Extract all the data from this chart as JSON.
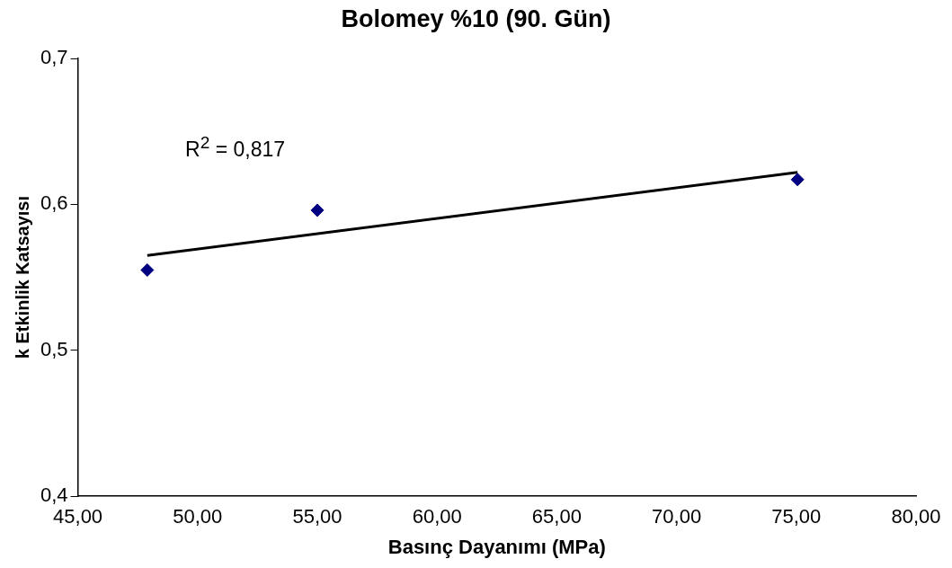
{
  "chart_data": {
    "type": "scatter",
    "title": "Bolomey %10 (90. Gün)",
    "xlabel": "Basınç Dayanımı (MPa)",
    "ylabel": "k Etkinlik Katsayısı",
    "series": [
      {
        "type": "scatter",
        "color": "#000080",
        "x": [
          47.9,
          55.0,
          75.05
        ],
        "values": [
          0.555,
          0.596,
          0.617
        ],
        "marker": "diamond"
      },
      {
        "type": "line",
        "color": "#000000",
        "x": [
          47.9,
          75.05
        ],
        "values": [
          0.565,
          0.622
        ],
        "marker": "none"
      }
    ],
    "xlim": [
      45,
      80
    ],
    "xticks": [
      {
        "value": 45,
        "label": "45,00"
      },
      {
        "value": 50,
        "label": "50,00"
      },
      {
        "value": 55,
        "label": "55,00"
      },
      {
        "value": 60,
        "label": "60,00"
      },
      {
        "value": 65,
        "label": "65,00"
      },
      {
        "value": 70,
        "label": "70,00"
      },
      {
        "value": 75,
        "label": "75,00"
      },
      {
        "value": 80,
        "label": "80,00"
      }
    ],
    "ylim": [
      0.4,
      0.7
    ],
    "yticks": [
      {
        "value": 0.4,
        "label": "0,4"
      },
      {
        "value": 0.5,
        "label": "0,5"
      },
      {
        "value": 0.6,
        "label": "0,6"
      },
      {
        "value": 0.7,
        "label": "0,7"
      }
    ],
    "annotations": [
      "R$^{2}$ = 0,817"
    ],
    "grid": false,
    "legend": false
  }
}
